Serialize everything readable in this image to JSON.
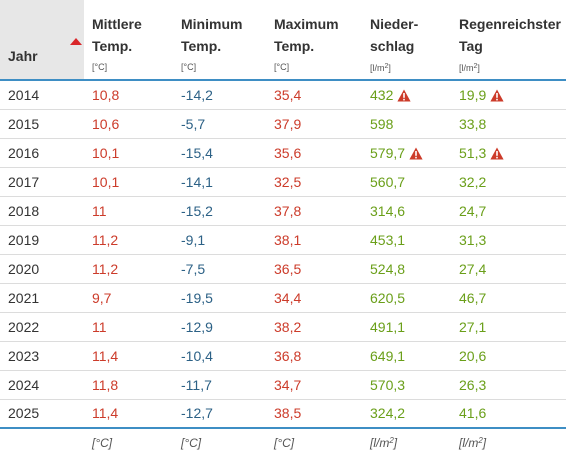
{
  "header": {
    "year": "Jahr",
    "mean": [
      "Mittlere",
      "Temp."
    ],
    "min": [
      "Minimum",
      "Temp."
    ],
    "max": [
      "Maximum",
      "Temp."
    ],
    "precip": [
      "Nieder-",
      "schlag"
    ],
    "rainiest": [
      "Regenreichster",
      "Tag"
    ],
    "unit_temp": "[°C]",
    "unit_precip_base": "[l/m",
    "unit_exp": "2",
    "unit_close": "]"
  },
  "rows": [
    {
      "year": "2014",
      "mean": "10,8",
      "min": "-14,2",
      "max": "35,4",
      "precip": "432",
      "precip_warn": true,
      "rainiest": "19,9",
      "rainiest_warn": true
    },
    {
      "year": "2015",
      "mean": "10,6",
      "min": "-5,7",
      "max": "37,9",
      "precip": "598",
      "precip_warn": false,
      "rainiest": "33,8",
      "rainiest_warn": false
    },
    {
      "year": "2016",
      "mean": "10,1",
      "min": "-15,4",
      "max": "35,6",
      "precip": "579,7",
      "precip_warn": true,
      "rainiest": "51,3",
      "rainiest_warn": true
    },
    {
      "year": "2017",
      "mean": "10,1",
      "min": "-14,1",
      "max": "32,5",
      "precip": "560,7",
      "precip_warn": false,
      "rainiest": "32,2",
      "rainiest_warn": false
    },
    {
      "year": "2018",
      "mean": "11",
      "min": "-15,2",
      "max": "37,8",
      "precip": "314,6",
      "precip_warn": false,
      "rainiest": "24,7",
      "rainiest_warn": false
    },
    {
      "year": "2019",
      "mean": "11,2",
      "min": "-9,1",
      "max": "38,1",
      "precip": "453,1",
      "precip_warn": false,
      "rainiest": "31,3",
      "rainiest_warn": false
    },
    {
      "year": "2020",
      "mean": "11,2",
      "min": "-7,5",
      "max": "36,5",
      "precip": "524,8",
      "precip_warn": false,
      "rainiest": "27,4",
      "rainiest_warn": false
    },
    {
      "year": "2021",
      "mean": "9,7",
      "min": "-19,5",
      "max": "34,4",
      "precip": "620,5",
      "precip_warn": false,
      "rainiest": "46,7",
      "rainiest_warn": false
    },
    {
      "year": "2022",
      "mean": "11",
      "min": "-12,9",
      "max": "38,2",
      "precip": "491,1",
      "precip_warn": false,
      "rainiest": "27,1",
      "rainiest_warn": false
    },
    {
      "year": "2023",
      "mean": "11,4",
      "min": "-10,4",
      "max": "36,8",
      "precip": "649,1",
      "precip_warn": false,
      "rainiest": "20,6",
      "rainiest_warn": false
    },
    {
      "year": "2024",
      "mean": "11,8",
      "min": "-11,7",
      "max": "34,7",
      "precip": "570,3",
      "precip_warn": false,
      "rainiest": "26,3",
      "rainiest_warn": false
    },
    {
      "year": "2025",
      "mean": "11,4",
      "min": "-12,7",
      "max": "38,5",
      "precip": "324,2",
      "precip_warn": false,
      "rainiest": "41,6",
      "rainiest_warn": false
    }
  ],
  "footer": {
    "unit_temp": "[°C]",
    "unit_precip_base": "[l/m",
    "unit_exp": "2",
    "unit_close": "]"
  },
  "colors": {
    "mean": "#cc3b2a",
    "min": "#2c6186",
    "max": "#cc3b2a",
    "precip": "#6a9f19",
    "warning": "#cc3b2a",
    "accent_border": "#3e8ec4"
  },
  "icons": {
    "sort": "sort-ascending-triangle-icon",
    "warning": "warning-triangle-icon"
  }
}
